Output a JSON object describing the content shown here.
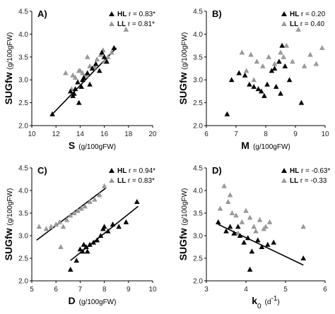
{
  "chart_data": [
    {
      "type": "scatter",
      "panel_label": "A)",
      "xlabel": "S",
      "xunit": "(g/100gFW)",
      "ylabel": "SUGfw",
      "yunit": "(g/100gFW)",
      "xlim": [
        10,
        20
      ],
      "ylim": [
        2.0,
        4.5
      ],
      "xticks": [
        10,
        12,
        14,
        16,
        18,
        20
      ],
      "yticks": [
        2.0,
        2.5,
        3.0,
        3.5,
        4.0,
        4.5
      ],
      "ytick_labels": [
        "2.0",
        "2.5",
        "3.0",
        "3.5",
        "4.0",
        "4.5"
      ],
      "series": [
        {
          "name": "HL",
          "r_text": "r = 0.83*",
          "color": "#000000",
          "x": [
            11.7,
            13.2,
            13.4,
            13.6,
            13.8,
            14.1,
            14.3,
            14.6,
            14.8,
            15.0,
            15.3,
            15.6,
            16.0,
            16.2,
            13.5,
            13.9,
            14.2,
            15.8,
            16.8
          ],
          "y": [
            2.25,
            2.75,
            2.65,
            2.8,
            2.95,
            2.85,
            3.05,
            3.15,
            2.9,
            3.25,
            3.35,
            3.2,
            3.5,
            3.4,
            2.7,
            2.5,
            3.0,
            3.6,
            3.7
          ],
          "fit": [
            [
              11.7,
              2.25
            ],
            [
              17.0,
              3.7
            ]
          ]
        },
        {
          "name": "LL",
          "r_text": "r = 0.81*",
          "color": "#999999",
          "x": [
            12.8,
            13.3,
            13.6,
            13.9,
            14.2,
            14.5,
            14.8,
            15.1,
            15.4,
            15.7,
            16.0,
            16.3,
            16.6,
            17.8,
            13.4,
            14.0,
            14.6,
            15.2,
            15.9
          ],
          "y": [
            3.15,
            2.8,
            3.05,
            3.2,
            3.15,
            3.1,
            3.3,
            3.25,
            3.45,
            3.55,
            3.4,
            3.5,
            3.6,
            4.1,
            3.1,
            3.2,
            3.5,
            3.3,
            3.65
          ],
          "fit": null
        }
      ]
    },
    {
      "type": "scatter",
      "panel_label": "B)",
      "xlabel": "M",
      "xunit": "(g/100gFW)",
      "ylabel": "SUGfw",
      "yunit": "(g/100gFW)",
      "xlim": [
        6,
        10
      ],
      "ylim": [
        2.0,
        4.5
      ],
      "xticks": [
        6,
        7,
        8,
        9,
        10
      ],
      "yticks": [
        2.0,
        2.5,
        3.0,
        3.5,
        4.0,
        4.5
      ],
      "ytick_labels": [
        "2.0",
        "2.5",
        "3.0",
        "3.5",
        "4.0",
        "4.5"
      ],
      "series": [
        {
          "name": "HL",
          "r_text": "r = 0.20",
          "color": "#000000",
          "x": [
            6.7,
            6.85,
            7.1,
            7.3,
            7.45,
            7.6,
            7.75,
            7.85,
            7.95,
            8.05,
            8.2,
            8.35,
            8.45,
            8.55,
            8.65,
            8.8,
            9.2,
            8.5,
            8.3
          ],
          "y": [
            2.25,
            3.0,
            3.15,
            3.1,
            2.9,
            2.85,
            2.8,
            2.75,
            2.65,
            2.9,
            3.2,
            2.85,
            3.4,
            3.75,
            3.3,
            3.0,
            2.5,
            2.7,
            3.25
          ],
          "fit": null
        },
        {
          "name": "LL",
          "r_text": "r = 0.40",
          "color": "#999999",
          "x": [
            7.2,
            7.35,
            7.5,
            7.7,
            7.9,
            8.1,
            8.3,
            8.5,
            8.7,
            8.9,
            9.1,
            9.3,
            9.5,
            9.7,
            9.9,
            7.6,
            8.6
          ],
          "y": [
            3.6,
            3.2,
            3.55,
            3.4,
            3.3,
            3.5,
            3.35,
            3.6,
            3.75,
            3.4,
            4.1,
            3.3,
            3.55,
            3.35,
            3.7,
            3.0,
            3.5
          ],
          "fit": null
        }
      ]
    },
    {
      "type": "scatter",
      "panel_label": "C)",
      "xlabel": "D",
      "xunit": "(g/100gFW)",
      "ylabel": "SUGfw",
      "yunit": "(g/100gFW)",
      "xlim": [
        5,
        10
      ],
      "ylim": [
        2.0,
        4.5
      ],
      "xticks": [
        5,
        6,
        7,
        8,
        9,
        10
      ],
      "yticks": [
        2.0,
        2.5,
        3.0,
        3.5,
        4.0,
        4.5
      ],
      "ytick_labels": [
        "2.0",
        "2.5",
        "3.0",
        "3.5",
        "4.0",
        "4.5"
      ],
      "series": [
        {
          "name": "HL",
          "r_text": "r = 0.94*",
          "color": "#000000",
          "x": [
            6.6,
            6.85,
            7.0,
            7.1,
            7.25,
            7.4,
            7.55,
            7.7,
            7.85,
            8.0,
            8.15,
            8.35,
            8.6,
            8.9,
            9.35,
            7.15,
            7.95,
            7.3
          ],
          "y": [
            2.25,
            2.45,
            2.7,
            2.65,
            2.75,
            2.8,
            2.85,
            2.9,
            3.0,
            3.2,
            3.1,
            3.25,
            3.2,
            3.3,
            3.75,
            2.8,
            3.15,
            2.65
          ],
          "fit": [
            [
              6.6,
              2.45
            ],
            [
              9.4,
              3.65
            ]
          ]
        },
        {
          "name": "LL",
          "r_text": "r = 0.83*",
          "color": "#999999",
          "x": [
            5.3,
            5.6,
            5.8,
            6.0,
            6.15,
            6.3,
            6.45,
            6.6,
            6.75,
            6.9,
            7.05,
            7.2,
            7.4,
            7.6,
            7.8,
            8.0,
            6.2
          ],
          "y": [
            3.2,
            3.15,
            3.2,
            3.25,
            3.3,
            3.2,
            3.35,
            3.45,
            3.5,
            3.55,
            3.6,
            3.65,
            3.75,
            3.8,
            3.9,
            4.1,
            2.75
          ],
          "fit": [
            [
              5.2,
              2.9
            ],
            [
              8.05,
              4.05
            ]
          ]
        }
      ]
    },
    {
      "type": "scatter",
      "panel_label": "D)",
      "xlabel": "k",
      "xsub": "0",
      "xunit": "(d",
      "xunit_sup": "-1",
      "xunit_end": ")",
      "ylabel": "SUGfw",
      "yunit": "(g/100gFW)",
      "xlim": [
        3,
        6
      ],
      "ylim": [
        2.0,
        4.5
      ],
      "xticks": [
        3,
        4,
        5,
        6
      ],
      "yticks": [
        2.0,
        2.5,
        3.0,
        3.5,
        4.0,
        4.5
      ],
      "ytick_labels": [
        "2.0",
        "2.5",
        "3.0",
        "3.5",
        "4.0",
        "4.5"
      ],
      "series": [
        {
          "name": "HL",
          "r_text": "r = -0.63*",
          "color": "#000000",
          "x": [
            3.3,
            3.5,
            3.6,
            3.7,
            3.85,
            3.95,
            4.05,
            4.15,
            4.3,
            4.4,
            4.55,
            4.7,
            5.45,
            3.8,
            4.1
          ],
          "y": [
            3.3,
            3.1,
            3.2,
            3.05,
            3.0,
            2.85,
            2.95,
            2.65,
            2.9,
            2.75,
            2.8,
            2.85,
            2.5,
            3.2,
            2.25
          ],
          "fit": [
            [
              3.3,
              3.25
            ],
            [
              5.45,
              2.35
            ]
          ]
        },
        {
          "name": "LL",
          "r_text": "r = -0.33",
          "color": "#999999",
          "x": [
            3.35,
            3.45,
            3.55,
            3.65,
            3.75,
            3.9,
            4.0,
            4.1,
            4.2,
            4.35,
            4.45,
            4.6,
            5.45,
            3.6,
            4.25,
            3.8,
            4.5
          ],
          "y": [
            3.6,
            4.1,
            3.75,
            3.5,
            3.45,
            3.3,
            3.55,
            3.4,
            3.2,
            3.35,
            3.15,
            3.3,
            3.2,
            3.9,
            3.1,
            3.05,
            3.2
          ],
          "fit": null
        }
      ]
    }
  ]
}
